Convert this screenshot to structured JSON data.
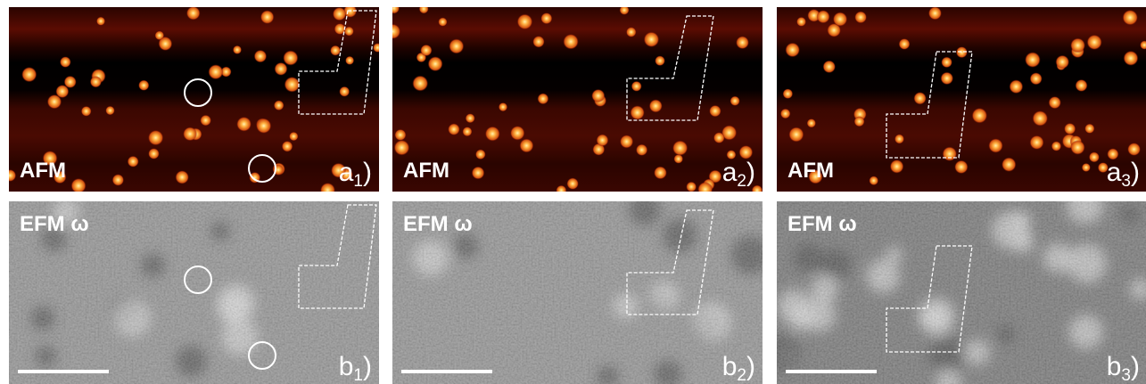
{
  "panels": [
    {
      "label": "AFM",
      "tag": [
        "a",
        "1",
        ")"
      ]
    },
    {
      "label": "AFM",
      "tag": [
        "a",
        "2",
        ")"
      ]
    },
    {
      "label": "AFM",
      "tag": [
        "a",
        "3",
        ")"
      ]
    },
    {
      "label": "EFM ω",
      "tag": [
        "b",
        "1",
        ")"
      ]
    },
    {
      "label": "EFM ω",
      "tag": [
        "b",
        "2",
        ")"
      ]
    },
    {
      "label": "EFM ω",
      "tag": [
        "b",
        "3",
        ")"
      ]
    }
  ]
}
